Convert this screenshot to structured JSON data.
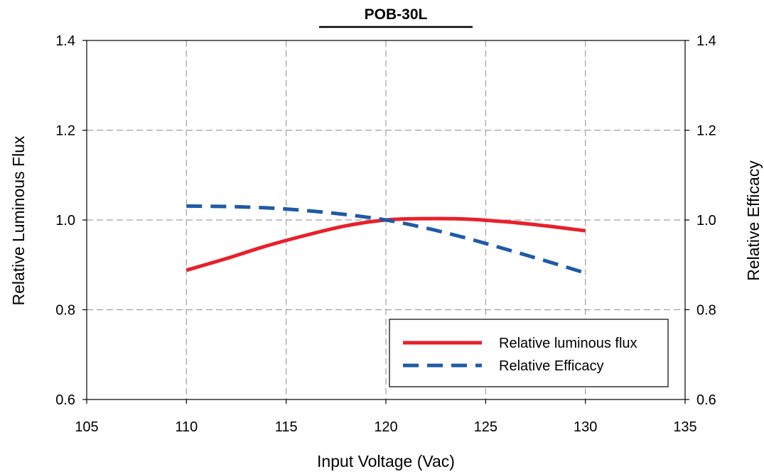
{
  "chart_data": {
    "type": "line",
    "title": "POB-30L",
    "xlabel": "Input Voltage  (Vac)",
    "ylabel": "Relative Luminous Flux",
    "y2label": "Relative Efficacy",
    "xlim": [
      105,
      135
    ],
    "ylim": [
      0.6,
      1.4
    ],
    "y2lim": [
      0.6,
      1.4
    ],
    "xticks": [
      105,
      110,
      115,
      120,
      125,
      130,
      135
    ],
    "xtick_labels": [
      "105",
      "110",
      "115",
      "120",
      "125",
      "130",
      "135"
    ],
    "yticks": [
      0.6,
      0.8,
      1.0,
      1.2,
      1.4
    ],
    "ytick_labels": [
      "0.6",
      "0.8",
      "1.0",
      "1.2",
      "1.4"
    ],
    "y2tick_labels": [
      "0.6",
      "0.8",
      "1.0",
      "1.2",
      "1.4"
    ],
    "grid": true,
    "legend_position": "bottom-right",
    "series": [
      {
        "name": "Relative luminous flux",
        "axis": "left",
        "color": "#e8202a",
        "style": "solid",
        "x": [
          110,
          112,
          114,
          116,
          118,
          120,
          122,
          124,
          126,
          128,
          130
        ],
        "y": [
          0.888,
          0.914,
          0.942,
          0.966,
          0.987,
          1.0,
          1.003,
          1.002,
          0.996,
          0.987,
          0.976
        ]
      },
      {
        "name": "Relative Efficacy",
        "axis": "right",
        "color": "#1f5aa6",
        "style": "dashed",
        "x": [
          110,
          112,
          114,
          116,
          118,
          120,
          122,
          124,
          126,
          128,
          130
        ],
        "y": [
          1.031,
          1.03,
          1.027,
          1.021,
          1.012,
          1.0,
          0.982,
          0.96,
          0.935,
          0.909,
          0.882
        ]
      }
    ]
  }
}
